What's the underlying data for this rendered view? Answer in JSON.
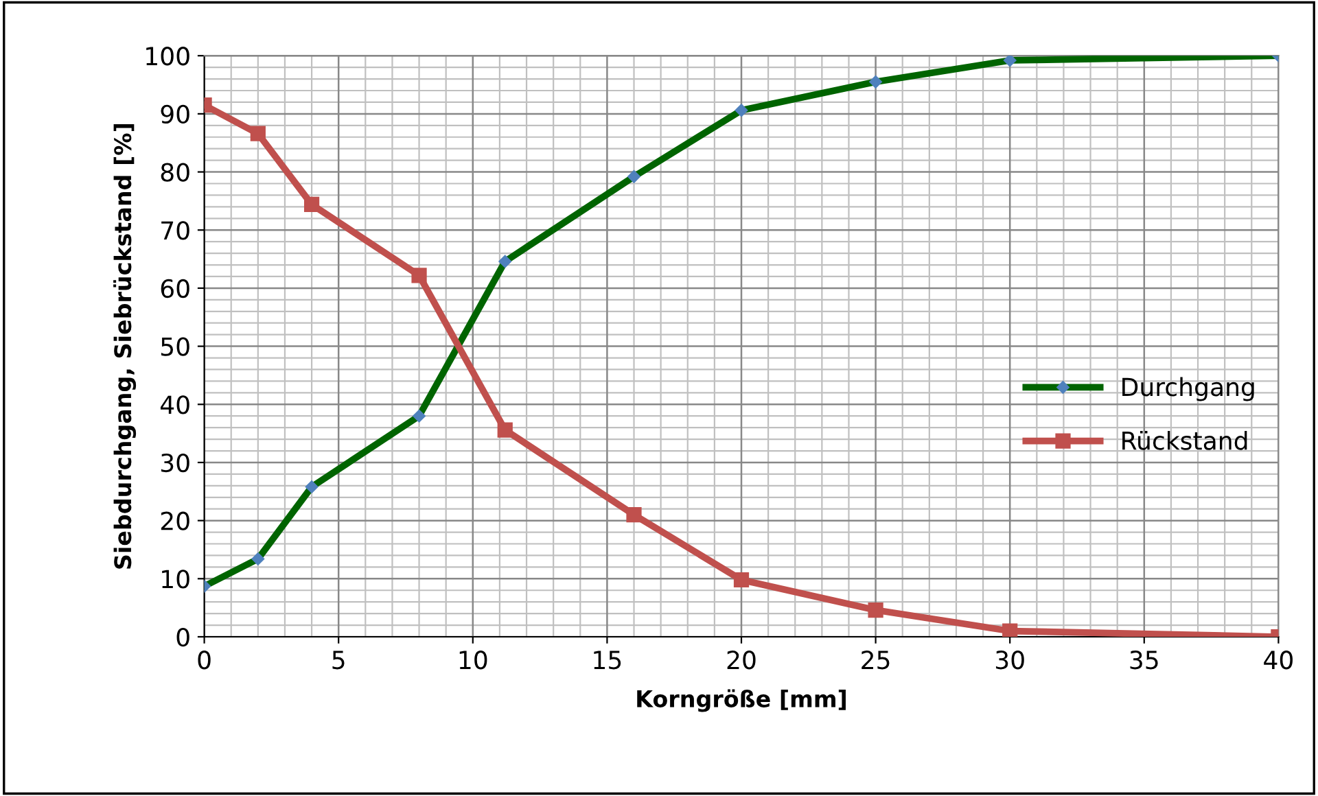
{
  "chart_data": {
    "type": "line",
    "xlabel": "Korngröße [mm]",
    "ylabel": "Siebdurchgang, Siebrückstand [%]",
    "x": [
      0,
      2,
      4,
      8,
      11.2,
      16,
      20,
      25,
      30,
      40
    ],
    "series": [
      {
        "name": "Durchgang",
        "color": "#006400",
        "marker": "diamond",
        "values": [
          8.7,
          13.4,
          25.8,
          38.0,
          64.6,
          79.2,
          90.6,
          95.5,
          99.2,
          100
        ]
      },
      {
        "name": "Rückstand",
        "color": "#c0504d",
        "marker": "square",
        "values": [
          91.5,
          86.6,
          74.4,
          62.2,
          35.6,
          21.0,
          9.8,
          4.6,
          1.0,
          0
        ]
      }
    ],
    "xlim": [
      0,
      40
    ],
    "xticks": [
      0,
      5,
      10,
      15,
      20,
      25,
      30,
      35,
      40
    ],
    "ylim": [
      0,
      100
    ],
    "yticks": [
      0,
      10,
      20,
      30,
      40,
      50,
      60,
      70,
      80,
      90,
      100
    ],
    "grid": true,
    "legend": "right",
    "line_style": "solid"
  }
}
